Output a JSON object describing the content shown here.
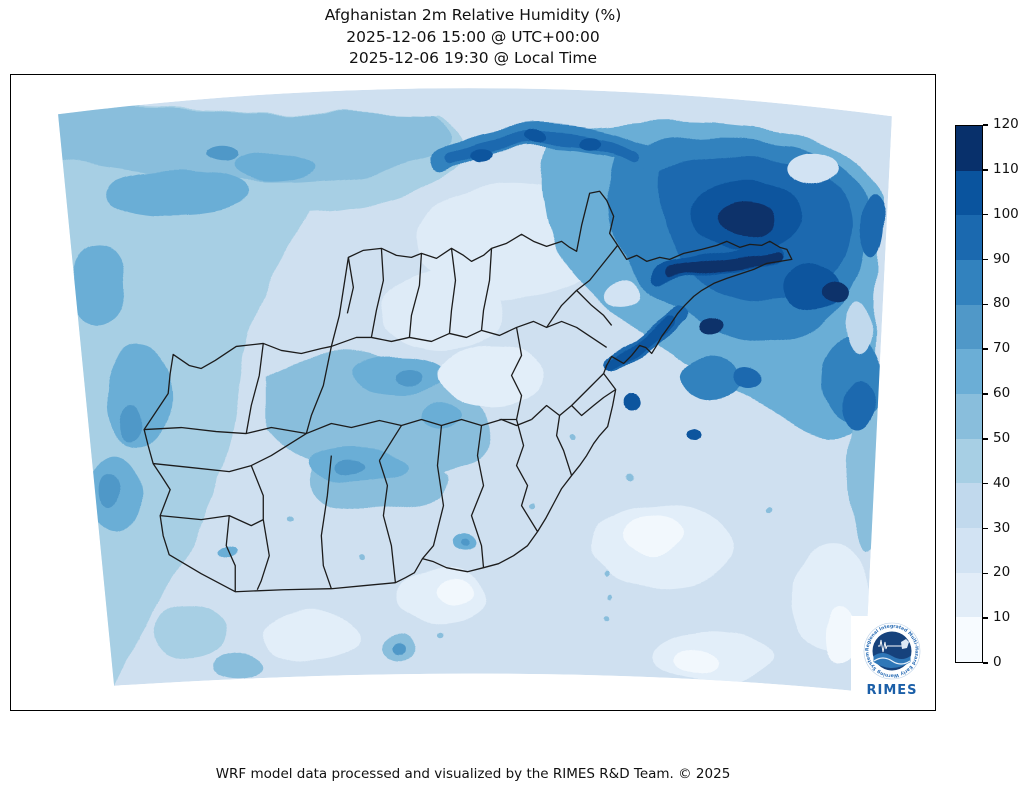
{
  "title": {
    "line1": "Afghanistan 2m Relative Humidity (%)",
    "line2": "2025-12-06 15:00 @ UTC+00:00",
    "line3": "2025-12-06 19:30 @ Local Time"
  },
  "footer": "WRF model data processed and visualized by the RIMES R&D Team. © 2025",
  "colorbar": {
    "title": "",
    "ticks": [
      0,
      10,
      20,
      30,
      40,
      50,
      60,
      70,
      80,
      90,
      100,
      110,
      120
    ],
    "min": 0,
    "max": 120,
    "colors_low_to_high": [
      "#f7fbff",
      "#e2edf8",
      "#d2e3f3",
      "#c1d9ed",
      "#a7cfe4",
      "#89bedc",
      "#6baed6",
      "#5098c8",
      "#3282be",
      "#1b69af",
      "#0a549e",
      "#08306b"
    ]
  },
  "map": {
    "variable": "2m Relative Humidity (%)",
    "region": "Afghanistan",
    "style": "filled contours, Blues colormap, province boundaries overlaid"
  },
  "logo": {
    "name": "RIMES",
    "ring_text": "Regional Integrated Multi-Hazard Early Warning System",
    "brand_color": "#1b5fa8"
  }
}
